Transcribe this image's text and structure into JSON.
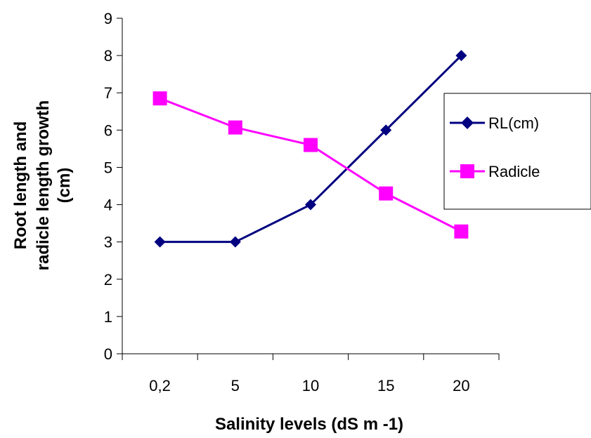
{
  "chart_data": {
    "type": "line",
    "categories": [
      "0,2",
      "5",
      "10",
      "15",
      "20"
    ],
    "series": [
      {
        "name": "RL(cm)",
        "values": [
          3,
          3,
          4,
          6,
          8
        ],
        "color": "#000080",
        "marker": "diamond"
      },
      {
        "name": "Radicle",
        "values": [
          6.85,
          6.07,
          5.6,
          4.3,
          3.28
        ],
        "color": "#FF00FF",
        "marker": "square"
      }
    ],
    "xlabel": "Salinity levels (dS m -1)",
    "ylabel_lines": [
      "Root length and",
      "radicle length growth",
      "(cm)"
    ],
    "ylim": [
      0,
      9
    ],
    "yticks": [
      "0",
      "1",
      "2",
      "3",
      "4",
      "5",
      "6",
      "7",
      "8",
      "9"
    ],
    "grid": false,
    "legend_position": "right"
  }
}
